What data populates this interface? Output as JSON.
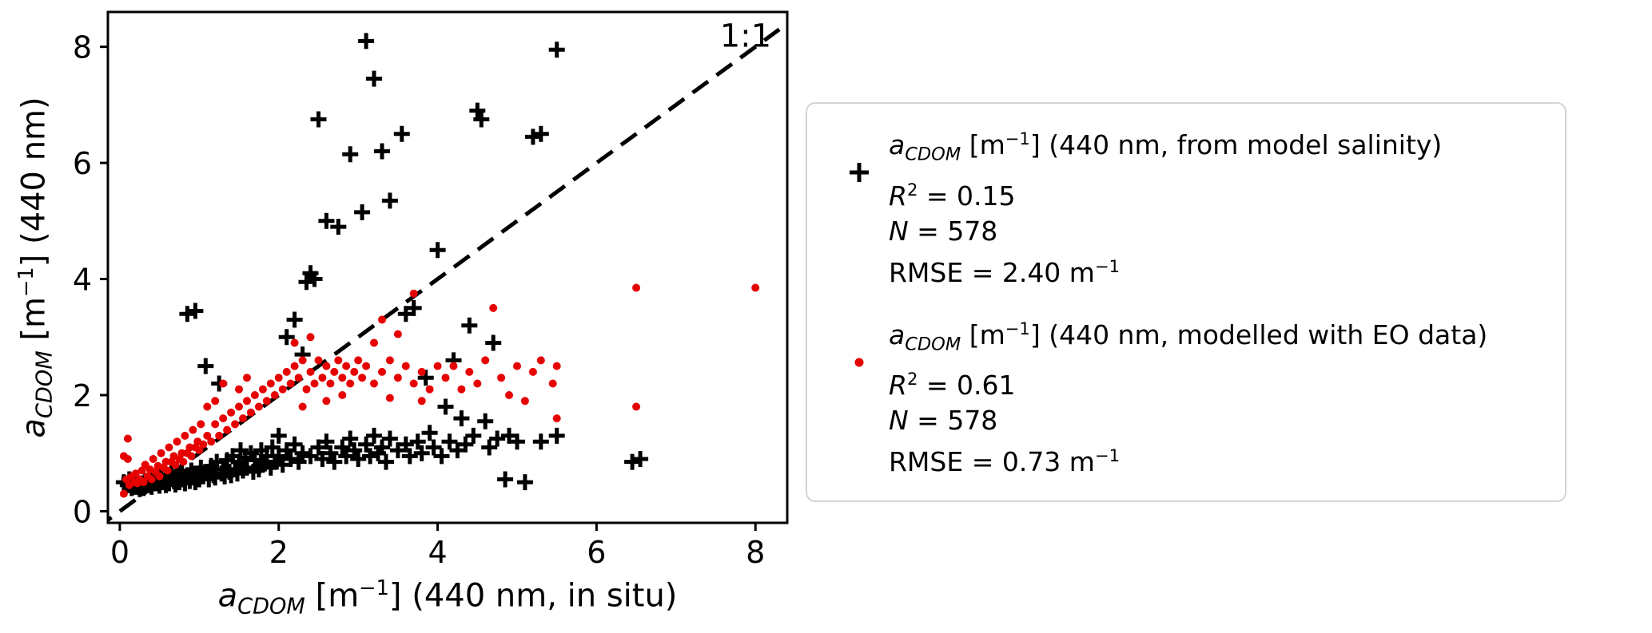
{
  "figure": {
    "background": "#ffffff"
  },
  "chart_data": {
    "type": "scatter",
    "title": "",
    "xlabel_parts": {
      "var": "a",
      "sub": "CDOM",
      "pre": " [m",
      "sup": "−1",
      "post": "] (440 nm, in situ)"
    },
    "ylabel_parts": {
      "var": "a",
      "sub": "CDOM",
      "pre": " [m",
      "sup": "−1",
      "post": "] (440 nm)"
    },
    "xlim": [
      -0.15,
      8.4
    ],
    "ylim": [
      -0.2,
      8.6
    ],
    "xticks": [
      0,
      2,
      4,
      6,
      8
    ],
    "yticks": [
      0,
      2,
      4,
      6,
      8
    ],
    "grid": false,
    "identity_line": {
      "label": "1:1",
      "style": "dashed",
      "color": "#000000",
      "from": [
        -0.3,
        -0.3
      ],
      "to": [
        8.3,
        8.3
      ],
      "label_pos": [
        8.2,
        8.0
      ]
    },
    "series": [
      {
        "name": "a_CDOM [m−1] (440 nm, from model salinity)",
        "marker": "plus",
        "color": "#000000",
        "r2": 0.15,
        "n": 578,
        "rmse": "2.40 m−1",
        "points": [
          [
            0.05,
            0.5
          ],
          [
            0.1,
            0.45
          ],
          [
            0.12,
            0.55
          ],
          [
            0.15,
            0.4
          ],
          [
            0.18,
            0.5
          ],
          [
            0.2,
            0.42
          ],
          [
            0.22,
            0.55
          ],
          [
            0.25,
            0.38
          ],
          [
            0.28,
            0.48
          ],
          [
            0.3,
            0.4
          ],
          [
            0.32,
            0.52
          ],
          [
            0.35,
            0.45
          ],
          [
            0.38,
            0.55
          ],
          [
            0.4,
            0.42
          ],
          [
            0.42,
            0.6
          ],
          [
            0.45,
            0.48
          ],
          [
            0.48,
            0.55
          ],
          [
            0.5,
            0.44
          ],
          [
            0.52,
            0.62
          ],
          [
            0.55,
            0.5
          ],
          [
            0.58,
            0.45
          ],
          [
            0.6,
            0.58
          ],
          [
            0.62,
            0.48
          ],
          [
            0.65,
            0.65
          ],
          [
            0.68,
            0.52
          ],
          [
            0.7,
            0.46
          ],
          [
            0.72,
            0.6
          ],
          [
            0.75,
            0.5
          ],
          [
            0.78,
            0.68
          ],
          [
            0.8,
            0.55
          ],
          [
            0.82,
            0.48
          ],
          [
            0.85,
            0.62
          ],
          [
            0.85,
            3.4
          ],
          [
            0.88,
            0.52
          ],
          [
            0.9,
            0.7
          ],
          [
            0.92,
            0.58
          ],
          [
            0.95,
            3.45
          ],
          [
            0.95,
            0.5
          ],
          [
            0.98,
            0.65
          ],
          [
            1.0,
            0.55
          ],
          [
            1.02,
            0.75
          ],
          [
            1.05,
            0.6
          ],
          [
            1.08,
            2.5
          ],
          [
            1.1,
            0.68
          ],
          [
            1.12,
            0.55
          ],
          [
            1.15,
            0.78
          ],
          [
            1.18,
            0.62
          ],
          [
            1.2,
            0.58
          ],
          [
            1.22,
            0.85
          ],
          [
            1.25,
            2.2
          ],
          [
            1.28,
            0.65
          ],
          [
            1.3,
            0.72
          ],
          [
            1.32,
            0.6
          ],
          [
            1.35,
            0.88
          ],
          [
            1.38,
            0.68
          ],
          [
            1.4,
            0.62
          ],
          [
            1.42,
            0.95
          ],
          [
            1.45,
            0.72
          ],
          [
            1.48,
            0.65
          ],
          [
            1.5,
            0.85
          ],
          [
            1.52,
            1.05
          ],
          [
            1.55,
            0.7
          ],
          [
            1.58,
            0.92
          ],
          [
            1.6,
            0.75
          ],
          [
            1.65,
            1.0
          ],
          [
            1.68,
            0.68
          ],
          [
            1.7,
            0.88
          ],
          [
            1.75,
            0.72
          ],
          [
            1.78,
            1.05
          ],
          [
            1.8,
            0.8
          ],
          [
            1.85,
            0.95
          ],
          [
            1.9,
            0.75
          ],
          [
            1.92,
            1.1
          ],
          [
            1.95,
            0.85
          ],
          [
            2.0,
            0.95
          ],
          [
            2.0,
            1.3
          ],
          [
            2.05,
            0.8
          ],
          [
            2.1,
            1.05
          ],
          [
            2.1,
            3.0
          ],
          [
            2.15,
            0.9
          ],
          [
            2.2,
            1.15
          ],
          [
            2.2,
            3.3
          ],
          [
            2.25,
            0.85
          ],
          [
            2.3,
            1.0
          ],
          [
            2.3,
            2.7
          ],
          [
            2.35,
            3.95
          ],
          [
            2.4,
            0.95
          ],
          [
            2.4,
            4.1
          ],
          [
            2.45,
            4.0
          ],
          [
            2.5,
            1.1
          ],
          [
            2.5,
            6.75
          ],
          [
            2.55,
            0.9
          ],
          [
            2.6,
            1.2
          ],
          [
            2.6,
            5.0
          ],
          [
            2.65,
            1.0
          ],
          [
            2.7,
            0.85
          ],
          [
            2.75,
            4.9
          ],
          [
            2.8,
            1.1
          ],
          [
            2.85,
            0.95
          ],
          [
            2.9,
            1.25
          ],
          [
            2.9,
            6.15
          ],
          [
            2.95,
            1.05
          ],
          [
            3.0,
            0.9
          ],
          [
            3.05,
            5.15
          ],
          [
            3.1,
            8.1
          ],
          [
            3.1,
            1.15
          ],
          [
            3.15,
            0.95
          ],
          [
            3.2,
            7.45
          ],
          [
            3.2,
            1.3
          ],
          [
            3.25,
            1.0
          ],
          [
            3.3,
            6.2
          ],
          [
            3.3,
            1.1
          ],
          [
            3.35,
            0.85
          ],
          [
            3.4,
            5.35
          ],
          [
            3.4,
            1.25
          ],
          [
            3.5,
            1.05
          ],
          [
            3.55,
            6.5
          ],
          [
            3.6,
            1.15
          ],
          [
            3.6,
            3.4
          ],
          [
            3.65,
            0.95
          ],
          [
            3.7,
            3.5
          ],
          [
            3.75,
            1.2
          ],
          [
            3.8,
            1.0
          ],
          [
            3.85,
            2.3
          ],
          [
            3.9,
            1.35
          ],
          [
            3.95,
            1.1
          ],
          [
            4.0,
            4.5
          ],
          [
            4.05,
            0.95
          ],
          [
            4.1,
            1.8
          ],
          [
            4.15,
            1.2
          ],
          [
            4.2,
            2.6
          ],
          [
            4.25,
            1.05
          ],
          [
            4.3,
            1.6
          ],
          [
            4.35,
            1.15
          ],
          [
            4.4,
            3.2
          ],
          [
            4.45,
            1.3
          ],
          [
            4.5,
            6.9
          ],
          [
            4.55,
            6.75
          ],
          [
            4.6,
            1.55
          ],
          [
            4.65,
            1.1
          ],
          [
            4.7,
            2.9
          ],
          [
            4.75,
            1.25
          ],
          [
            4.85,
            0.55
          ],
          [
            4.9,
            1.3
          ],
          [
            5.0,
            1.2
          ],
          [
            5.1,
            0.5
          ],
          [
            5.2,
            6.45
          ],
          [
            5.3,
            6.5
          ],
          [
            5.3,
            1.2
          ],
          [
            5.5,
            7.95
          ],
          [
            5.5,
            1.3
          ],
          [
            6.45,
            0.85
          ],
          [
            6.55,
            0.9
          ]
        ]
      },
      {
        "name": "a_CDOM [m−1] (440 nm, modelled with EO data)",
        "marker": "dot",
        "color": "#e60000",
        "r2": 0.61,
        "n": 578,
        "rmse": "0.73 m−1",
        "points": [
          [
            0.05,
            0.3
          ],
          [
            0.05,
            0.95
          ],
          [
            0.08,
            0.55
          ],
          [
            0.1,
            0.9
          ],
          [
            0.1,
            1.25
          ],
          [
            0.12,
            0.45
          ],
          [
            0.15,
            0.6
          ],
          [
            0.18,
            0.5
          ],
          [
            0.2,
            0.65
          ],
          [
            0.22,
            0.48
          ],
          [
            0.25,
            0.55
          ],
          [
            0.28,
            0.7
          ],
          [
            0.3,
            0.5
          ],
          [
            0.32,
            0.8
          ],
          [
            0.35,
            0.6
          ],
          [
            0.38,
            0.72
          ],
          [
            0.4,
            0.55
          ],
          [
            0.42,
            0.9
          ],
          [
            0.45,
            0.68
          ],
          [
            0.48,
            0.78
          ],
          [
            0.5,
            0.6
          ],
          [
            0.52,
            1.0
          ],
          [
            0.55,
            0.75
          ],
          [
            0.58,
            0.85
          ],
          [
            0.6,
            0.7
          ],
          [
            0.62,
            1.1
          ],
          [
            0.65,
            0.85
          ],
          [
            0.68,
            0.95
          ],
          [
            0.7,
            0.8
          ],
          [
            0.72,
            1.2
          ],
          [
            0.75,
            0.9
          ],
          [
            0.78,
            1.0
          ],
          [
            0.8,
            0.85
          ],
          [
            0.82,
            1.3
          ],
          [
            0.85,
            1.0
          ],
          [
            0.88,
            1.1
          ],
          [
            0.9,
            0.95
          ],
          [
            0.92,
            1.4
          ],
          [
            0.95,
            1.1
          ],
          [
            0.98,
            1.2
          ],
          [
            1.0,
            1.05
          ],
          [
            1.02,
            1.5
          ],
          [
            1.05,
            1.15
          ],
          [
            1.1,
            1.3
          ],
          [
            1.1,
            1.8
          ],
          [
            1.15,
            1.2
          ],
          [
            1.2,
            1.5
          ],
          [
            1.2,
            1.9
          ],
          [
            1.25,
            1.3
          ],
          [
            1.3,
            1.6
          ],
          [
            1.3,
            2.2
          ],
          [
            1.35,
            1.4
          ],
          [
            1.4,
            1.7
          ],
          [
            1.45,
            1.5
          ],
          [
            1.5,
            1.8
          ],
          [
            1.5,
            2.1
          ],
          [
            1.55,
            1.6
          ],
          [
            1.6,
            1.9
          ],
          [
            1.6,
            2.3
          ],
          [
            1.65,
            1.7
          ],
          [
            1.7,
            2.0
          ],
          [
            1.75,
            1.8
          ],
          [
            1.8,
            2.1
          ],
          [
            1.85,
            1.9
          ],
          [
            1.9,
            2.2
          ],
          [
            1.95,
            2.0
          ],
          [
            2.0,
            2.3
          ],
          [
            2.05,
            2.1
          ],
          [
            2.1,
            2.4
          ],
          [
            2.15,
            2.2
          ],
          [
            2.2,
            2.5
          ],
          [
            2.2,
            2.9
          ],
          [
            2.25,
            2.3
          ],
          [
            2.3,
            2.6
          ],
          [
            2.3,
            1.8
          ],
          [
            2.35,
            2.1
          ],
          [
            2.4,
            2.4
          ],
          [
            2.4,
            3.0
          ],
          [
            2.45,
            2.2
          ],
          [
            2.5,
            2.6
          ],
          [
            2.55,
            2.3
          ],
          [
            2.6,
            2.5
          ],
          [
            2.6,
            1.9
          ],
          [
            2.65,
            2.2
          ],
          [
            2.7,
            2.4
          ],
          [
            2.75,
            2.6
          ],
          [
            2.8,
            2.3
          ],
          [
            2.8,
            2.0
          ],
          [
            2.85,
            2.5
          ],
          [
            2.9,
            2.2
          ],
          [
            2.95,
            2.4
          ],
          [
            3.0,
            2.6
          ],
          [
            3.05,
            2.3
          ],
          [
            3.1,
            2.5
          ],
          [
            3.2,
            2.2
          ],
          [
            3.2,
            2.9
          ],
          [
            3.3,
            2.4
          ],
          [
            3.3,
            3.3
          ],
          [
            3.4,
            2.6
          ],
          [
            3.4,
            1.95
          ],
          [
            3.5,
            2.3
          ],
          [
            3.5,
            3.05
          ],
          [
            3.6,
            2.5
          ],
          [
            3.7,
            2.2
          ],
          [
            3.7,
            3.75
          ],
          [
            3.8,
            2.4
          ],
          [
            3.8,
            1.9
          ],
          [
            3.9,
            2.1
          ],
          [
            4.0,
            2.5
          ],
          [
            4.1,
            2.3
          ],
          [
            4.2,
            2.5
          ],
          [
            4.3,
            2.1
          ],
          [
            4.4,
            2.4
          ],
          [
            4.5,
            2.2
          ],
          [
            4.6,
            2.6
          ],
          [
            4.7,
            3.5
          ],
          [
            4.8,
            2.3
          ],
          [
            4.9,
            2.0
          ],
          [
            5.0,
            2.5
          ],
          [
            5.1,
            1.9
          ],
          [
            5.2,
            2.4
          ],
          [
            5.3,
            2.6
          ],
          [
            5.45,
            2.2
          ],
          [
            5.5,
            2.5
          ],
          [
            5.5,
            1.6
          ],
          [
            6.5,
            3.85
          ],
          [
            6.5,
            1.8
          ],
          [
            8.0,
            3.85
          ]
        ]
      }
    ]
  },
  "legend": {
    "entries": [
      {
        "title_var": "a",
        "title_sub": "CDOM",
        "title_pre": " [m",
        "title_sup": "−1",
        "title_post": "] (440 nm, from model salinity)",
        "r_it": "R",
        "r_sup": "2",
        "r_val": " = 0.15",
        "n_it": "N",
        "n_val": " = 578",
        "rmse_pre": "RMSE = 2.40 m",
        "rmse_sup": "−1"
      },
      {
        "title_var": "a",
        "title_sub": "CDOM",
        "title_pre": " [m",
        "title_sup": "−1",
        "title_post": "] (440 nm, modelled with EO data)",
        "r_it": "R",
        "r_sup": "2",
        "r_val": " = 0.61",
        "n_it": "N",
        "n_val": " = 578",
        "rmse_pre": "RMSE = 0.73 m",
        "rmse_sup": "−1"
      }
    ]
  }
}
